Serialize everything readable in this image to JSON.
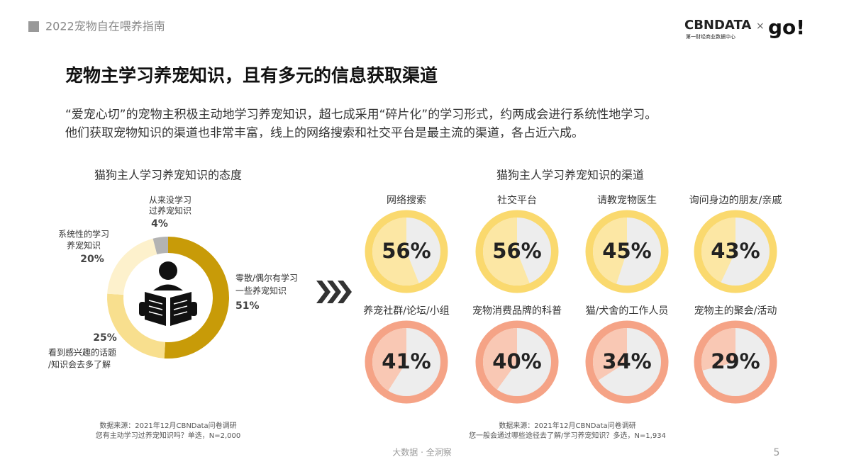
{
  "header": {
    "section": "2022宠物自在喂养指南",
    "brand": "CBNDATA",
    "brand_sub": "第一财经商业数据中心",
    "times": "×",
    "go": "go!"
  },
  "title": "宠物主学习养宠知识，且有多元的信息获取渠道",
  "paragraph": [
    "“爱宠心切”的宠物主积极主动地学习养宠知识，超七成采用“碎片化”的学习形式，约两成会进行系统性地学习。",
    "他们获取宠物知识的渠道也非常丰富，线上的网络搜索和社交平台是最主流的渠道，各占近六成。"
  ],
  "chart_data": [
    {
      "type": "donut",
      "title": "猫狗主人学习养宠知识的态度",
      "categories": [
        [
          "零散/偶尔有学习",
          "一些养宠知识"
        ],
        [
          "看到感兴趣的话题",
          "/知识会去多了解"
        ],
        [
          "系统性的学习",
          "养宠知识"
        ],
        [
          "从来没学习",
          "过养宠知识"
        ]
      ],
      "values": [
        51,
        25,
        20,
        4
      ],
      "value_labels": [
        "51%",
        "25%",
        "20%",
        "4%"
      ],
      "colors": [
        "#c89b08",
        "#f8df8e",
        "#fdf1cc",
        "#b3b3b3"
      ],
      "source": [
        "数据来源：2021年12月CBNData问卷调研",
        "您有主动学习过养宠知识吗？单选，N=2,000"
      ]
    },
    {
      "type": "pie-grid",
      "title": "猫狗主人学习养宠知识的渠道",
      "categories": [
        "网络搜索",
        "社交平台",
        "请教宠物医生",
        "询问身边的朋友/亲戚",
        "养宠社群/论坛/小组",
        "宠物消费品牌的科普",
        "猫/犬舍的工作人员",
        "宠物主的聚会/活动"
      ],
      "values": [
        56,
        56,
        45,
        43,
        41,
        40,
        34,
        29
      ],
      "value_labels": [
        "56%",
        "56%",
        "45%",
        "43%",
        "41%",
        "40%",
        "34%",
        "29%"
      ],
      "colors": [
        "#fad96e",
        "#fad96e",
        "#fad96e",
        "#fad96e",
        "#f5a386",
        "#f5a386",
        "#f5a386",
        "#f5a386"
      ],
      "fill_colors": [
        "#fce7a4",
        "#fce7a4",
        "#fce7a4",
        "#fce7a4",
        "#f9c8b4",
        "#f9c8b4",
        "#f9c8b4",
        "#f9c8b4"
      ],
      "source": [
        "数据来源：2021年12月CBNData问卷调研",
        "您一般会通过哪些途径去了解/学习养宠知识？多选，N=1,934"
      ]
    }
  ],
  "footer": {
    "center": "大数据 · 全洞察",
    "page": "5"
  }
}
